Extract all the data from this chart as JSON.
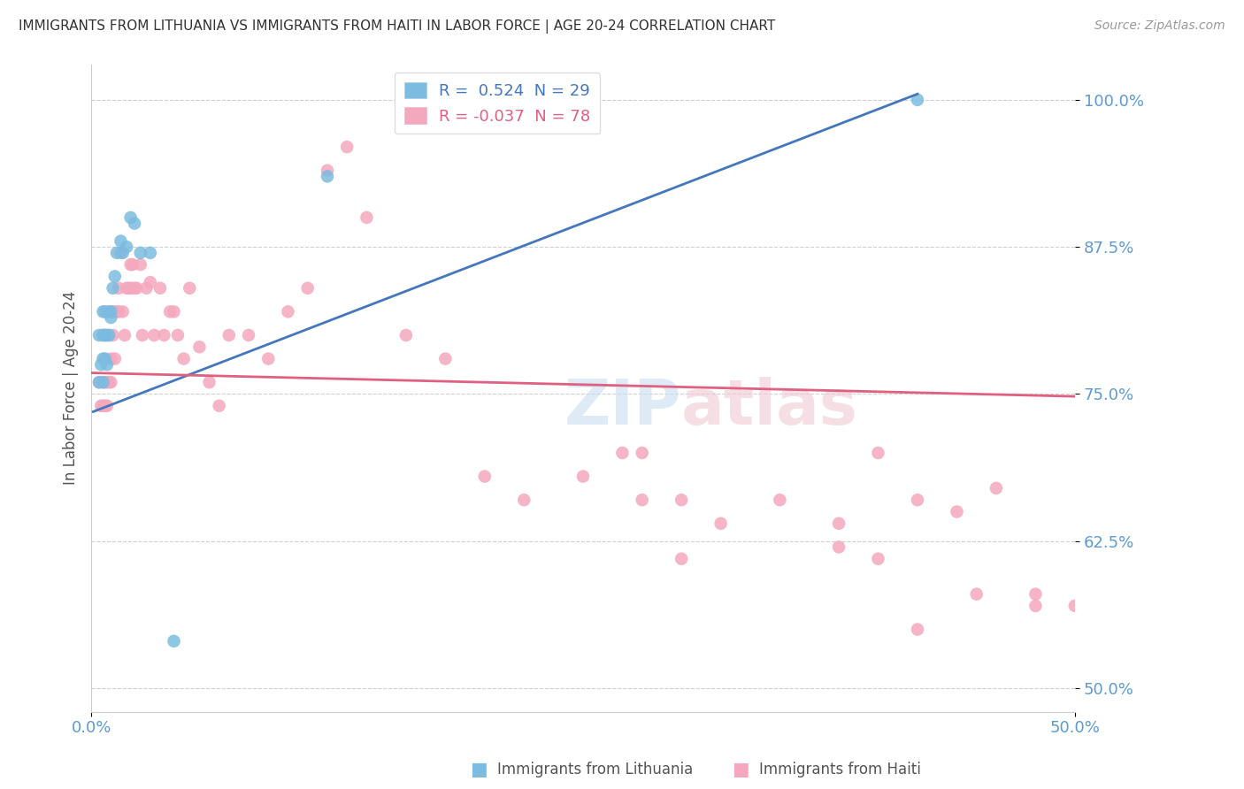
{
  "title": "IMMIGRANTS FROM LITHUANIA VS IMMIGRANTS FROM HAITI IN LABOR FORCE | AGE 20-24 CORRELATION CHART",
  "source": "Source: ZipAtlas.com",
  "ylabel": "In Labor Force | Age 20-24",
  "yticks": [
    0.5,
    0.625,
    0.75,
    0.875,
    1.0
  ],
  "ytick_labels": [
    "50.0%",
    "62.5%",
    "75.0%",
    "87.5%",
    "100.0%"
  ],
  "xlim": [
    0.0,
    0.5
  ],
  "ylim": [
    0.48,
    1.03
  ],
  "legend_blue_r": "0.524",
  "legend_blue_n": "29",
  "legend_pink_r": "-0.037",
  "legend_pink_n": "78",
  "watermark": "ZIPatlas",
  "blue_color": "#7bbce0",
  "pink_color": "#f4a8be",
  "blue_line_color": "#4477bb",
  "pink_line_color": "#e06080",
  "blue_line_x0": 0.001,
  "blue_line_y0": 0.735,
  "blue_line_x1": 0.42,
  "blue_line_y1": 1.005,
  "pink_line_x0": 0.0,
  "pink_line_y0": 0.768,
  "pink_line_x1": 0.5,
  "pink_line_y1": 0.748,
  "blue_x": [
    0.004,
    0.004,
    0.005,
    0.006,
    0.006,
    0.006,
    0.006,
    0.007,
    0.007,
    0.007,
    0.008,
    0.008,
    0.009,
    0.009,
    0.01,
    0.01,
    0.011,
    0.012,
    0.013,
    0.015,
    0.016,
    0.018,
    0.02,
    0.022,
    0.025,
    0.03,
    0.042,
    0.12,
    0.42
  ],
  "blue_y": [
    0.76,
    0.8,
    0.775,
    0.76,
    0.78,
    0.8,
    0.82,
    0.78,
    0.8,
    0.82,
    0.775,
    0.8,
    0.8,
    0.82,
    0.815,
    0.82,
    0.84,
    0.85,
    0.87,
    0.88,
    0.87,
    0.875,
    0.9,
    0.895,
    0.87,
    0.87,
    0.54,
    0.935,
    1.0
  ],
  "pink_x": [
    0.004,
    0.005,
    0.006,
    0.006,
    0.006,
    0.007,
    0.007,
    0.007,
    0.008,
    0.008,
    0.009,
    0.009,
    0.01,
    0.01,
    0.01,
    0.011,
    0.011,
    0.012,
    0.013,
    0.014,
    0.014,
    0.015,
    0.016,
    0.017,
    0.018,
    0.019,
    0.02,
    0.02,
    0.021,
    0.022,
    0.023,
    0.025,
    0.026,
    0.028,
    0.03,
    0.032,
    0.035,
    0.037,
    0.04,
    0.042,
    0.044,
    0.047,
    0.05,
    0.055,
    0.06,
    0.065,
    0.07,
    0.08,
    0.09,
    0.1,
    0.11,
    0.12,
    0.13,
    0.14,
    0.16,
    0.18,
    0.2,
    0.22,
    0.25,
    0.27,
    0.28,
    0.3,
    0.32,
    0.35,
    0.38,
    0.4,
    0.42,
    0.44,
    0.46,
    0.48,
    0.5,
    0.28,
    0.3,
    0.38,
    0.4,
    0.42,
    0.45,
    0.48
  ],
  "pink_y": [
    0.76,
    0.74,
    0.74,
    0.76,
    0.8,
    0.74,
    0.76,
    0.8,
    0.74,
    0.76,
    0.76,
    0.8,
    0.76,
    0.78,
    0.82,
    0.8,
    0.82,
    0.78,
    0.82,
    0.82,
    0.84,
    0.87,
    0.82,
    0.8,
    0.84,
    0.84,
    0.86,
    0.84,
    0.86,
    0.84,
    0.84,
    0.86,
    0.8,
    0.84,
    0.845,
    0.8,
    0.84,
    0.8,
    0.82,
    0.82,
    0.8,
    0.78,
    0.84,
    0.79,
    0.76,
    0.74,
    0.8,
    0.8,
    0.78,
    0.82,
    0.84,
    0.94,
    0.96,
    0.9,
    0.8,
    0.78,
    0.68,
    0.66,
    0.68,
    0.7,
    0.66,
    0.61,
    0.64,
    0.66,
    0.62,
    0.7,
    0.66,
    0.65,
    0.67,
    0.58,
    0.57,
    0.7,
    0.66,
    0.64,
    0.61,
    0.55,
    0.58,
    0.57
  ]
}
